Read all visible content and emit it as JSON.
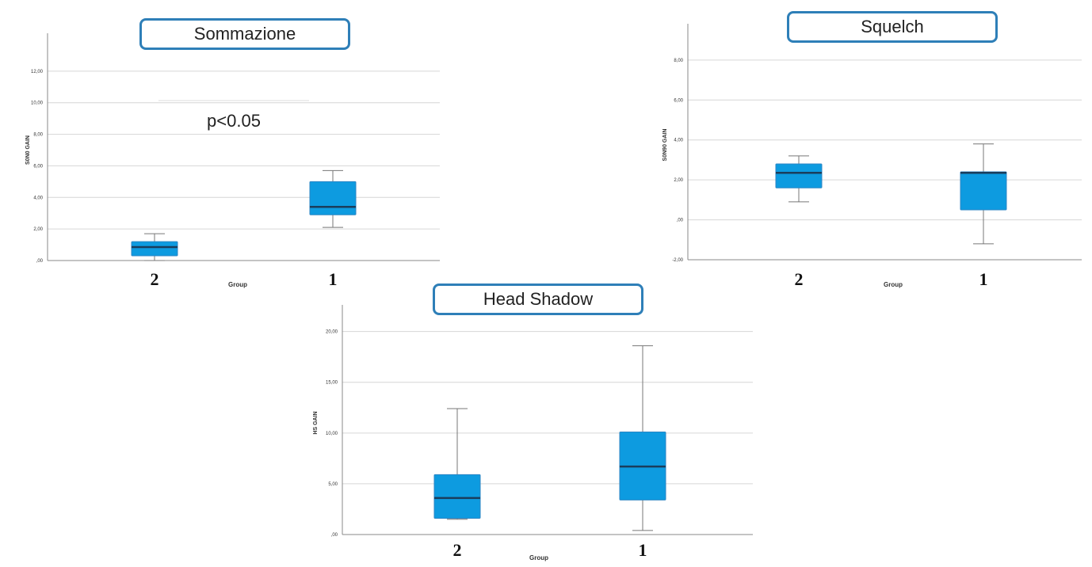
{
  "colors": {
    "box_fill": "#0d9be0",
    "median": "#1a3d5c",
    "title_border": "#2e7fb8"
  },
  "chart_data": [
    {
      "id": "summation",
      "type": "boxplot",
      "title": "Sommazione",
      "ylabel": "S0N0 GAIN",
      "xlabel": "Group",
      "categories": [
        "2",
        "1"
      ],
      "ylim": [
        0,
        14
      ],
      "yticks": [
        0,
        2,
        4,
        6,
        8,
        10,
        12
      ],
      "ytick_labels": [
        ",00",
        "2,00",
        "4,00",
        "6,00",
        "8,00",
        "10,00",
        "12,00"
      ],
      "annotation": "p<0.05",
      "grid": true,
      "boxes": [
        {
          "category": "2",
          "min": 0.0,
          "q1": 0.3,
          "median": 0.85,
          "q3": 1.2,
          "max": 1.7
        },
        {
          "category": "1",
          "min": 2.1,
          "q1": 2.9,
          "median": 3.4,
          "q3": 5.0,
          "max": 5.7
        }
      ]
    },
    {
      "id": "squelch",
      "type": "boxplot",
      "title": "Squelch",
      "ylabel": "S0N90 GAIN",
      "xlabel": "Group",
      "categories": [
        "2",
        "1"
      ],
      "ylim": [
        -2,
        9.5
      ],
      "yticks": [
        -2,
        0,
        2,
        4,
        6,
        8
      ],
      "ytick_labels": [
        "-2,00",
        ",00",
        "2,00",
        "4,00",
        "6,00",
        "8,00"
      ],
      "grid": true,
      "boxes": [
        {
          "category": "2",
          "min": 0.9,
          "q1": 1.6,
          "median": 2.35,
          "q3": 2.8,
          "max": 3.2
        },
        {
          "category": "1",
          "min": -1.2,
          "q1": 0.5,
          "median": 2.35,
          "q3": 2.4,
          "max": 3.8
        }
      ]
    },
    {
      "id": "head-shadow",
      "type": "boxplot",
      "title": "Head Shadow",
      "ylabel": "HS GAIN",
      "xlabel": "Group",
      "categories": [
        "2",
        "1"
      ],
      "ylim": [
        0,
        22
      ],
      "yticks": [
        0,
        5,
        10,
        15,
        20
      ],
      "ytick_labels": [
        ",00",
        "5,00",
        "10,00",
        "15,00",
        "20,00"
      ],
      "grid": true,
      "boxes": [
        {
          "category": "2",
          "min": 1.5,
          "q1": 1.6,
          "median": 3.6,
          "q3": 5.9,
          "max": 12.4
        },
        {
          "category": "1",
          "min": 0.4,
          "q1": 3.4,
          "median": 6.7,
          "q3": 10.1,
          "max": 18.6
        }
      ]
    }
  ]
}
